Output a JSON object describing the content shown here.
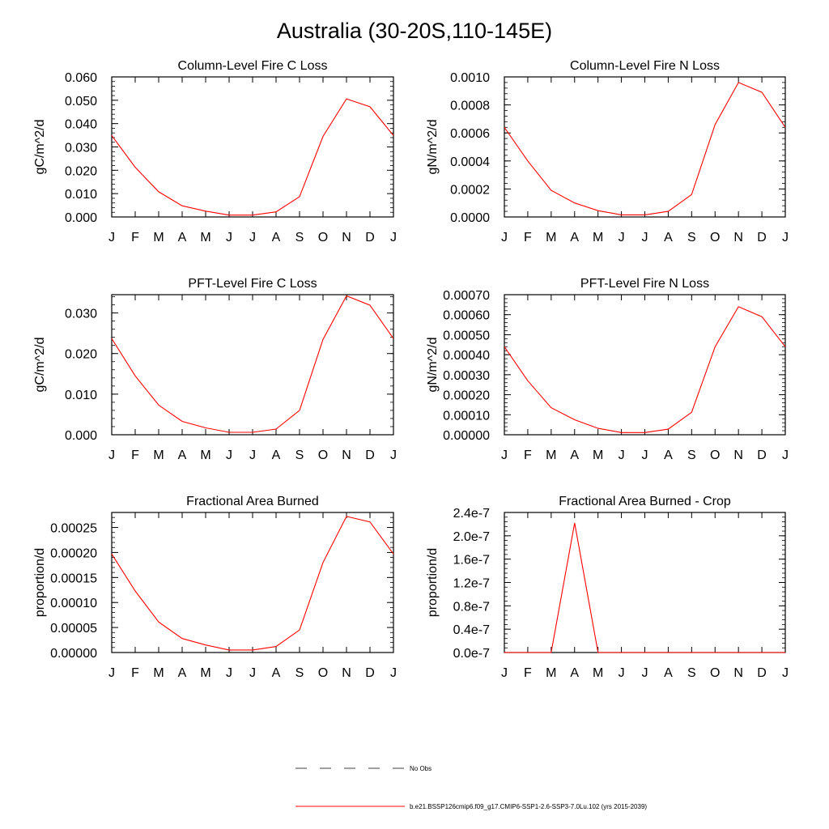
{
  "figure": {
    "title": "Australia (30-20S,110-145E)"
  },
  "month_labels": [
    "J",
    "F",
    "M",
    "A",
    "M",
    "J",
    "J",
    "A",
    "S",
    "O",
    "N",
    "D",
    "J"
  ],
  "legend": {
    "obs_label": "No Obs",
    "model_label": "b.e21.BSSP126cmip6.f09_g17.CMIP6-SSP1-2.6-SSP3-7.0Lu.102 (yrs 2015-2039)",
    "model_color": "#ff0000"
  },
  "chart_data": [
    {
      "type": "line",
      "title": "Column-Level Fire C Loss",
      "ylabel": "gC/m^2/d",
      "ylim": [
        0,
        0.06
      ],
      "yticks": [
        0,
        0.01,
        0.02,
        0.03,
        0.04,
        0.05,
        0.06
      ],
      "ytick_labels": [
        "0.000",
        "0.010",
        "0.020",
        "0.030",
        "0.040",
        "0.050",
        "0.060"
      ],
      "categories": [
        "J",
        "F",
        "M",
        "A",
        "M",
        "J",
        "J",
        "A",
        "S",
        "O",
        "N",
        "D",
        "J"
      ],
      "series": [
        {
          "color": "#ff0000",
          "values": [
            0.0349,
            0.0213,
            0.0108,
            0.0048,
            0.0025,
            0.0008,
            0.0008,
            0.0022,
            0.0087,
            0.0345,
            0.0506,
            0.0472,
            0.0349
          ]
        }
      ]
    },
    {
      "type": "line",
      "title": "Column-Level Fire N Loss",
      "ylabel": "gN/m^2/d",
      "ylim": [
        0,
        0.001
      ],
      "yticks": [
        0,
        0.0002,
        0.0004,
        0.0006,
        0.0008,
        0.001
      ],
      "ytick_labels": [
        "0.0000",
        "0.0002",
        "0.0004",
        "0.0006",
        "0.0008",
        "0.0010"
      ],
      "categories": [
        "J",
        "F",
        "M",
        "A",
        "M",
        "J",
        "J",
        "A",
        "S",
        "O",
        "N",
        "D",
        "J"
      ],
      "series": [
        {
          "color": "#ff0000",
          "values": [
            0.00064,
            0.0004,
            0.00019,
            0.0001,
            4.5e-05,
            1.5e-05,
            1.5e-05,
            4e-05,
            0.00016,
            0.00066,
            0.00096,
            0.00089,
            0.00064
          ]
        }
      ]
    },
    {
      "type": "line",
      "title": "PFT-Level Fire C Loss",
      "ylabel": "gC/m^2/d",
      "ylim": [
        0,
        0.0345
      ],
      "yticks": [
        0,
        0.01,
        0.02,
        0.03
      ],
      "ytick_labels": [
        "0.000",
        "0.010",
        "0.020",
        "0.030"
      ],
      "categories": [
        "J",
        "F",
        "M",
        "A",
        "M",
        "J",
        "J",
        "A",
        "S",
        "O",
        "N",
        "D",
        "J"
      ],
      "series": [
        {
          "color": "#ff0000",
          "values": [
            0.0237,
            0.0145,
            0.0073,
            0.0033,
            0.0017,
            0.0006,
            0.0006,
            0.0014,
            0.006,
            0.0235,
            0.0342,
            0.0319,
            0.0237
          ]
        }
      ]
    },
    {
      "type": "line",
      "title": "PFT-Level Fire N Loss",
      "ylabel": "gN/m^2/d",
      "ylim": [
        0,
        0.0007
      ],
      "yticks": [
        0,
        0.0001,
        0.0002,
        0.0003,
        0.0004,
        0.0005,
        0.0006,
        0.0007
      ],
      "ytick_labels": [
        "0.00000",
        "0.00010",
        "0.00020",
        "0.00030",
        "0.00040",
        "0.00050",
        "0.00060",
        "0.00070"
      ],
      "categories": [
        "J",
        "F",
        "M",
        "A",
        "M",
        "J",
        "J",
        "A",
        "S",
        "O",
        "N",
        "D",
        "J"
      ],
      "series": [
        {
          "color": "#ff0000",
          "values": [
            0.00044,
            0.00027,
            0.000135,
            7.5e-05,
            3.2e-05,
            1.1e-05,
            1.1e-05,
            2.8e-05,
            0.000112,
            0.00044,
            0.00064,
            0.00059,
            0.00044
          ]
        }
      ]
    },
    {
      "type": "line",
      "title": "Fractional Area Burned",
      "ylabel": "proportion/d",
      "ylim": [
        0,
        0.00028
      ],
      "yticks": [
        0,
        5e-05,
        0.0001,
        0.00015,
        0.0002,
        0.00025
      ],
      "ytick_labels": [
        "0.00000",
        "0.00005",
        "0.00010",
        "0.00015",
        "0.00020",
        "0.00025"
      ],
      "categories": [
        "J",
        "F",
        "M",
        "A",
        "M",
        "J",
        "J",
        "A",
        "S",
        "O",
        "N",
        "D",
        "J"
      ],
      "series": [
        {
          "color": "#ff0000",
          "values": [
            0.000197,
            0.000123,
            6.1e-05,
            2.8e-05,
            1.5e-05,
            5e-06,
            5e-06,
            1.2e-05,
            4.5e-05,
            0.00018,
            0.000272,
            0.000261,
            0.000197
          ]
        }
      ]
    },
    {
      "type": "line",
      "title": "Fractional Area Burned - Crop",
      "ylabel": "proportion/d",
      "ylim": [
        0,
        2.4e-07
      ],
      "yticks": [
        0,
        4e-08,
        8e-08,
        1.2e-07,
        1.6e-07,
        2e-07,
        2.4e-07
      ],
      "ytick_labels": [
        "0.0e-7",
        "0.4e-7",
        "0.8e-7",
        "1.2e-7",
        "1.6e-7",
        "2.0e-7",
        "2.4e-7"
      ],
      "categories": [
        "J",
        "F",
        "M",
        "A",
        "M",
        "J",
        "J",
        "A",
        "S",
        "O",
        "N",
        "D",
        "J"
      ],
      "series": [
        {
          "color": "#ff0000",
          "values": [
            0,
            0,
            0,
            2.22e-07,
            0,
            0,
            0,
            0,
            0,
            0,
            0,
            0,
            0
          ]
        }
      ]
    }
  ]
}
